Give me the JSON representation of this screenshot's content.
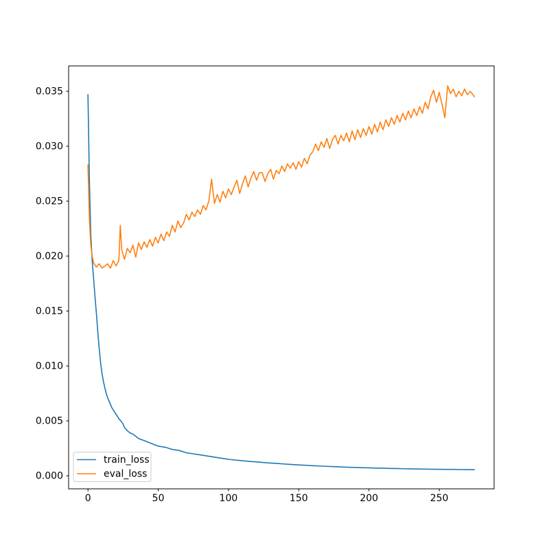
{
  "chart_data": {
    "type": "line",
    "title": "",
    "xlabel": "",
    "ylabel": "",
    "xlim": [
      -13.76,
      289.04
    ],
    "ylim": [
      -0.0011875,
      0.0373125
    ],
    "grid": false,
    "xticks": {
      "values": [
        0,
        50,
        100,
        150,
        200,
        250
      ],
      "labels": [
        "0",
        "50",
        "100",
        "150",
        "200",
        "250"
      ]
    },
    "yticks": {
      "values": [
        0.0,
        0.005,
        0.01,
        0.015,
        0.02,
        0.025,
        0.03,
        0.035
      ],
      "labels": [
        "0.000",
        "0.005",
        "0.010",
        "0.015",
        "0.020",
        "0.025",
        "0.030",
        "0.035"
      ]
    },
    "legend": {
      "position": "lower-left",
      "entries": [
        "train_loss",
        "eval_loss"
      ]
    },
    "colors": {
      "background": "#ffffff",
      "axes": "#000000",
      "legend_border": "#cccccc",
      "train_loss": "#1f77b4",
      "eval_loss": "#ff7f0e"
    },
    "series": [
      {
        "name": "train_loss",
        "color": "#1f77b4",
        "points": [
          [
            0,
            0.0347
          ],
          [
            1,
            0.027
          ],
          [
            2,
            0.022
          ],
          [
            3,
            0.0196
          ],
          [
            4,
            0.018
          ],
          [
            5,
            0.0163
          ],
          [
            6,
            0.0148
          ],
          [
            7,
            0.0131
          ],
          [
            8,
            0.0116
          ],
          [
            9,
            0.0103
          ],
          [
            10,
            0.0093
          ],
          [
            11,
            0.0086
          ],
          [
            12,
            0.008
          ],
          [
            13,
            0.0075
          ],
          [
            14,
            0.0071
          ],
          [
            15,
            0.0068
          ],
          [
            16,
            0.0065
          ],
          [
            17,
            0.0062
          ],
          [
            18,
            0.006
          ],
          [
            19,
            0.0058
          ],
          [
            20,
            0.0056
          ],
          [
            22,
            0.0052
          ],
          [
            24,
            0.0049
          ],
          [
            25,
            0.0047
          ],
          [
            26,
            0.0044
          ],
          [
            28,
            0.0041
          ],
          [
            30,
            0.0039
          ],
          [
            32,
            0.0038
          ],
          [
            34,
            0.0036
          ],
          [
            35,
            0.0035
          ],
          [
            36,
            0.0034
          ],
          [
            38,
            0.0033
          ],
          [
            40,
            0.0032
          ],
          [
            42,
            0.0031
          ],
          [
            44,
            0.003
          ],
          [
            46,
            0.0029
          ],
          [
            48,
            0.0028
          ],
          [
            50,
            0.0027
          ],
          [
            55,
            0.0026
          ],
          [
            60,
            0.0024
          ],
          [
            65,
            0.0023
          ],
          [
            70,
            0.0021
          ],
          [
            75,
            0.002
          ],
          [
            80,
            0.0019
          ],
          [
            85,
            0.0018
          ],
          [
            90,
            0.0017
          ],
          [
            95,
            0.0016
          ],
          [
            100,
            0.0015
          ],
          [
            105,
            0.00143
          ],
          [
            110,
            0.00137
          ],
          [
            115,
            0.00131
          ],
          [
            120,
            0.00126
          ],
          [
            125,
            0.00121
          ],
          [
            130,
            0.00116
          ],
          [
            135,
            0.00112
          ],
          [
            140,
            0.00107
          ],
          [
            145,
            0.00103
          ],
          [
            150,
            0.00099
          ],
          [
            155,
            0.00096
          ],
          [
            160,
            0.00092
          ],
          [
            165,
            0.00089
          ],
          [
            170,
            0.00086
          ],
          [
            175,
            0.00083
          ],
          [
            180,
            0.00081
          ],
          [
            185,
            0.00078
          ],
          [
            190,
            0.00076
          ],
          [
            195,
            0.00074
          ],
          [
            200,
            0.00072
          ],
          [
            205,
            0.0007
          ],
          [
            210,
            0.00069
          ],
          [
            215,
            0.00067
          ],
          [
            220,
            0.00066
          ],
          [
            225,
            0.00064
          ],
          [
            230,
            0.00063
          ],
          [
            235,
            0.00062
          ],
          [
            240,
            0.00061
          ],
          [
            245,
            0.0006
          ],
          [
            250,
            0.00059
          ],
          [
            255,
            0.00058
          ],
          [
            260,
            0.00058
          ],
          [
            265,
            0.00057
          ],
          [
            270,
            0.00056
          ],
          [
            275,
            0.00056
          ]
        ]
      },
      {
        "name": "eval_loss",
        "color": "#ff7f0e",
        "points": [
          [
            0,
            0.0283
          ],
          [
            1,
            0.0235
          ],
          [
            2,
            0.021
          ],
          [
            3,
            0.02
          ],
          [
            4,
            0.0194
          ],
          [
            6,
            0.019
          ],
          [
            8,
            0.0193
          ],
          [
            10,
            0.0189
          ],
          [
            12,
            0.0191
          ],
          [
            14,
            0.0193
          ],
          [
            16,
            0.0189
          ],
          [
            18,
            0.0196
          ],
          [
            20,
            0.0191
          ],
          [
            22,
            0.0196
          ],
          [
            23,
            0.0228
          ],
          [
            24,
            0.0206
          ],
          [
            26,
            0.0197
          ],
          [
            28,
            0.0207
          ],
          [
            30,
            0.0203
          ],
          [
            32,
            0.021
          ],
          [
            34,
            0.0199
          ],
          [
            36,
            0.0212
          ],
          [
            38,
            0.0206
          ],
          [
            40,
            0.0213
          ],
          [
            42,
            0.0208
          ],
          [
            44,
            0.0215
          ],
          [
            46,
            0.0209
          ],
          [
            48,
            0.0217
          ],
          [
            50,
            0.0212
          ],
          [
            52,
            0.022
          ],
          [
            54,
            0.0214
          ],
          [
            56,
            0.0222
          ],
          [
            58,
            0.0218
          ],
          [
            60,
            0.0228
          ],
          [
            62,
            0.0222
          ],
          [
            64,
            0.0232
          ],
          [
            66,
            0.0226
          ],
          [
            68,
            0.023
          ],
          [
            70,
            0.0238
          ],
          [
            72,
            0.0233
          ],
          [
            74,
            0.024
          ],
          [
            76,
            0.0236
          ],
          [
            78,
            0.0242
          ],
          [
            80,
            0.0238
          ],
          [
            82,
            0.0246
          ],
          [
            84,
            0.0242
          ],
          [
            86,
            0.025
          ],
          [
            88,
            0.027
          ],
          [
            90,
            0.0248
          ],
          [
            92,
            0.0256
          ],
          [
            94,
            0.0249
          ],
          [
            96,
            0.0259
          ],
          [
            98,
            0.0253
          ],
          [
            100,
            0.0261
          ],
          [
            102,
            0.0256
          ],
          [
            104,
            0.0263
          ],
          [
            106,
            0.0269
          ],
          [
            108,
            0.0257
          ],
          [
            110,
            0.0266
          ],
          [
            112,
            0.0273
          ],
          [
            114,
            0.0263
          ],
          [
            116,
            0.0271
          ],
          [
            118,
            0.0277
          ],
          [
            120,
            0.0269
          ],
          [
            122,
            0.0276
          ],
          [
            124,
            0.0276
          ],
          [
            126,
            0.0268
          ],
          [
            128,
            0.0275
          ],
          [
            130,
            0.0279
          ],
          [
            132,
            0.027
          ],
          [
            134,
            0.0278
          ],
          [
            136,
            0.0275
          ],
          [
            138,
            0.0282
          ],
          [
            140,
            0.0277
          ],
          [
            142,
            0.0284
          ],
          [
            144,
            0.028
          ],
          [
            146,
            0.0285
          ],
          [
            148,
            0.0279
          ],
          [
            150,
            0.0286
          ],
          [
            152,
            0.0281
          ],
          [
            154,
            0.0289
          ],
          [
            156,
            0.0284
          ],
          [
            158,
            0.0292
          ],
          [
            160,
            0.0295
          ],
          [
            162,
            0.0302
          ],
          [
            164,
            0.0296
          ],
          [
            166,
            0.0304
          ],
          [
            168,
            0.0299
          ],
          [
            170,
            0.0307
          ],
          [
            172,
            0.0298
          ],
          [
            174,
            0.0306
          ],
          [
            176,
            0.031
          ],
          [
            178,
            0.0302
          ],
          [
            180,
            0.031
          ],
          [
            182,
            0.0305
          ],
          [
            184,
            0.0312
          ],
          [
            186,
            0.0304
          ],
          [
            188,
            0.0314
          ],
          [
            190,
            0.0306
          ],
          [
            192,
            0.0315
          ],
          [
            194,
            0.0308
          ],
          [
            196,
            0.0316
          ],
          [
            198,
            0.031
          ],
          [
            200,
            0.0318
          ],
          [
            202,
            0.0311
          ],
          [
            204,
            0.032
          ],
          [
            206,
            0.0313
          ],
          [
            208,
            0.0322
          ],
          [
            210,
            0.0315
          ],
          [
            212,
            0.0324
          ],
          [
            214,
            0.0318
          ],
          [
            216,
            0.0326
          ],
          [
            218,
            0.032
          ],
          [
            220,
            0.0328
          ],
          [
            222,
            0.0322
          ],
          [
            224,
            0.033
          ],
          [
            226,
            0.0324
          ],
          [
            228,
            0.0332
          ],
          [
            230,
            0.0326
          ],
          [
            232,
            0.0334
          ],
          [
            234,
            0.0328
          ],
          [
            236,
            0.0336
          ],
          [
            238,
            0.033
          ],
          [
            240,
            0.034
          ],
          [
            242,
            0.0334
          ],
          [
            244,
            0.0345
          ],
          [
            246,
            0.0351
          ],
          [
            248,
            0.034
          ],
          [
            250,
            0.0349
          ],
          [
            252,
            0.0338
          ],
          [
            254,
            0.0326
          ],
          [
            256,
            0.0355
          ],
          [
            258,
            0.0348
          ],
          [
            260,
            0.0352
          ],
          [
            262,
            0.0345
          ],
          [
            264,
            0.035
          ],
          [
            266,
            0.0346
          ],
          [
            268,
            0.0352
          ],
          [
            270,
            0.0347
          ],
          [
            272,
            0.035
          ],
          [
            274,
            0.0347
          ],
          [
            275,
            0.0345
          ]
        ]
      }
    ]
  }
}
